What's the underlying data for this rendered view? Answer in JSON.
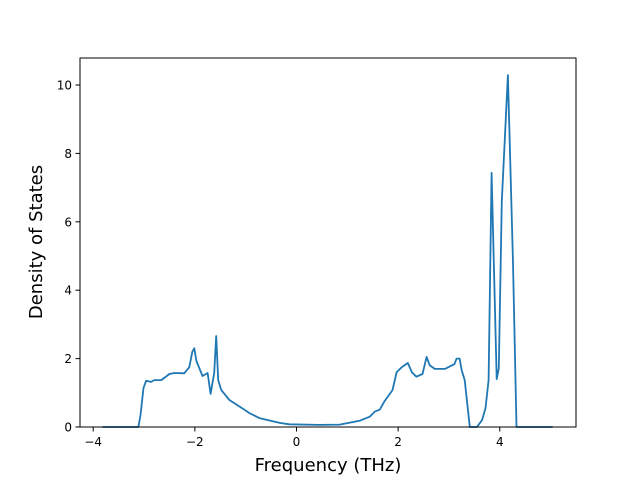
{
  "chart_data": {
    "type": "line",
    "title": "",
    "xlabel": "Frequency (THz)",
    "ylabel": "Density of States",
    "xlim": [
      -4.26,
      5.5
    ],
    "ylim": [
      0,
      10.79
    ],
    "xticks": [
      -4,
      -2,
      0,
      2,
      4
    ],
    "yticks": [
      0,
      2,
      4,
      6,
      8,
      10
    ],
    "grid": false,
    "color": "#1f77b4",
    "series": [
      {
        "x": [
          -3.82,
          -3.11,
          -3.07,
          -3.01,
          -2.96,
          -2.86,
          -2.8,
          -2.66,
          -2.5,
          -2.4,
          -2.21,
          -2.11,
          -2.05,
          -2.01,
          -1.97,
          -1.85,
          -1.75,
          -1.69,
          -1.62,
          -1.58,
          -1.54,
          -1.48,
          -1.32,
          -1.02,
          -0.93,
          -0.73,
          -0.33,
          -0.14,
          0.45,
          0.85,
          1.24,
          1.44,
          1.54,
          1.64,
          1.73,
          1.89,
          1.97,
          2.07,
          2.19,
          2.27,
          2.36,
          2.48,
          2.56,
          2.62,
          2.72,
          2.92,
          3.11,
          3.15,
          3.21,
          3.25,
          3.31,
          3.41,
          3.55,
          3.65,
          3.72,
          3.78,
          3.84,
          3.94,
          3.98,
          4.04,
          4.16,
          4.26,
          4.33,
          5.04
        ],
        "y": [
          0,
          0,
          0.35,
          1.14,
          1.35,
          1.32,
          1.37,
          1.37,
          1.55,
          1.58,
          1.57,
          1.75,
          2.2,
          2.3,
          1.93,
          1.49,
          1.58,
          0.97,
          1.58,
          2.66,
          1.37,
          1.08,
          0.79,
          0.5,
          0.41,
          0.26,
          0.12,
          0.08,
          0.06,
          0.07,
          0.18,
          0.3,
          0.45,
          0.51,
          0.75,
          1.08,
          1.6,
          1.75,
          1.87,
          1.6,
          1.47,
          1.55,
          2.05,
          1.81,
          1.7,
          1.7,
          1.84,
          2.0,
          2.0,
          1.66,
          1.37,
          0,
          0,
          0.2,
          0.55,
          1.37,
          7.43,
          1.4,
          1.72,
          6.6,
          10.29,
          4.8,
          0,
          0
        ]
      }
    ]
  }
}
